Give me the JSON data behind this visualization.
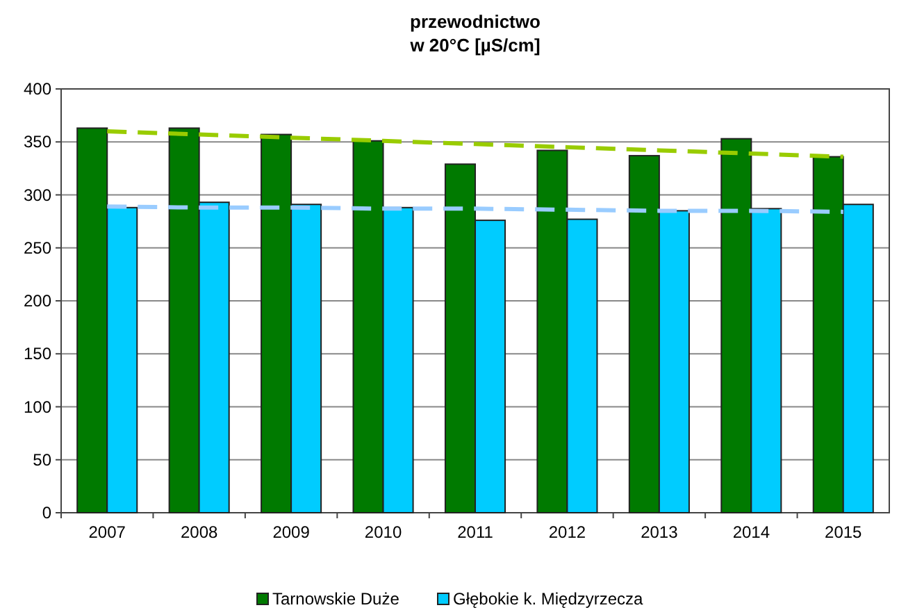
{
  "chart_data": {
    "type": "bar",
    "title": "przewodnictwo",
    "subtitle": "w 20°C [µS/cm]",
    "categories": [
      "2007",
      "2008",
      "2009",
      "2010",
      "2011",
      "2012",
      "2013",
      "2014",
      "2015"
    ],
    "series": [
      {
        "name": "Tarnowskie Duże",
        "color": "#007a00",
        "values": [
          363,
          363,
          357,
          351,
          329,
          342,
          337,
          353,
          336
        ]
      },
      {
        "name": "Głębokie k. Międzyrzecza",
        "color": "#00ccff",
        "values": [
          288,
          293,
          291,
          288,
          276,
          277,
          285,
          287,
          291
        ]
      },
      {
        "type": "line",
        "color": "#99cc00",
        "line_style": "dashed",
        "values": [
          360,
          357,
          354,
          351,
          348,
          345,
          342,
          339,
          336
        ]
      },
      {
        "type": "line",
        "color": "#99ccff",
        "line_style": "dashed",
        "values": [
          289,
          288,
          288,
          287,
          287,
          286,
          285,
          285,
          284
        ]
      }
    ],
    "ylim": [
      0,
      400
    ],
    "yticks": [
      0,
      50,
      100,
      150,
      200,
      250,
      300,
      350,
      400
    ],
    "grid": "y",
    "legend": "bottom"
  }
}
